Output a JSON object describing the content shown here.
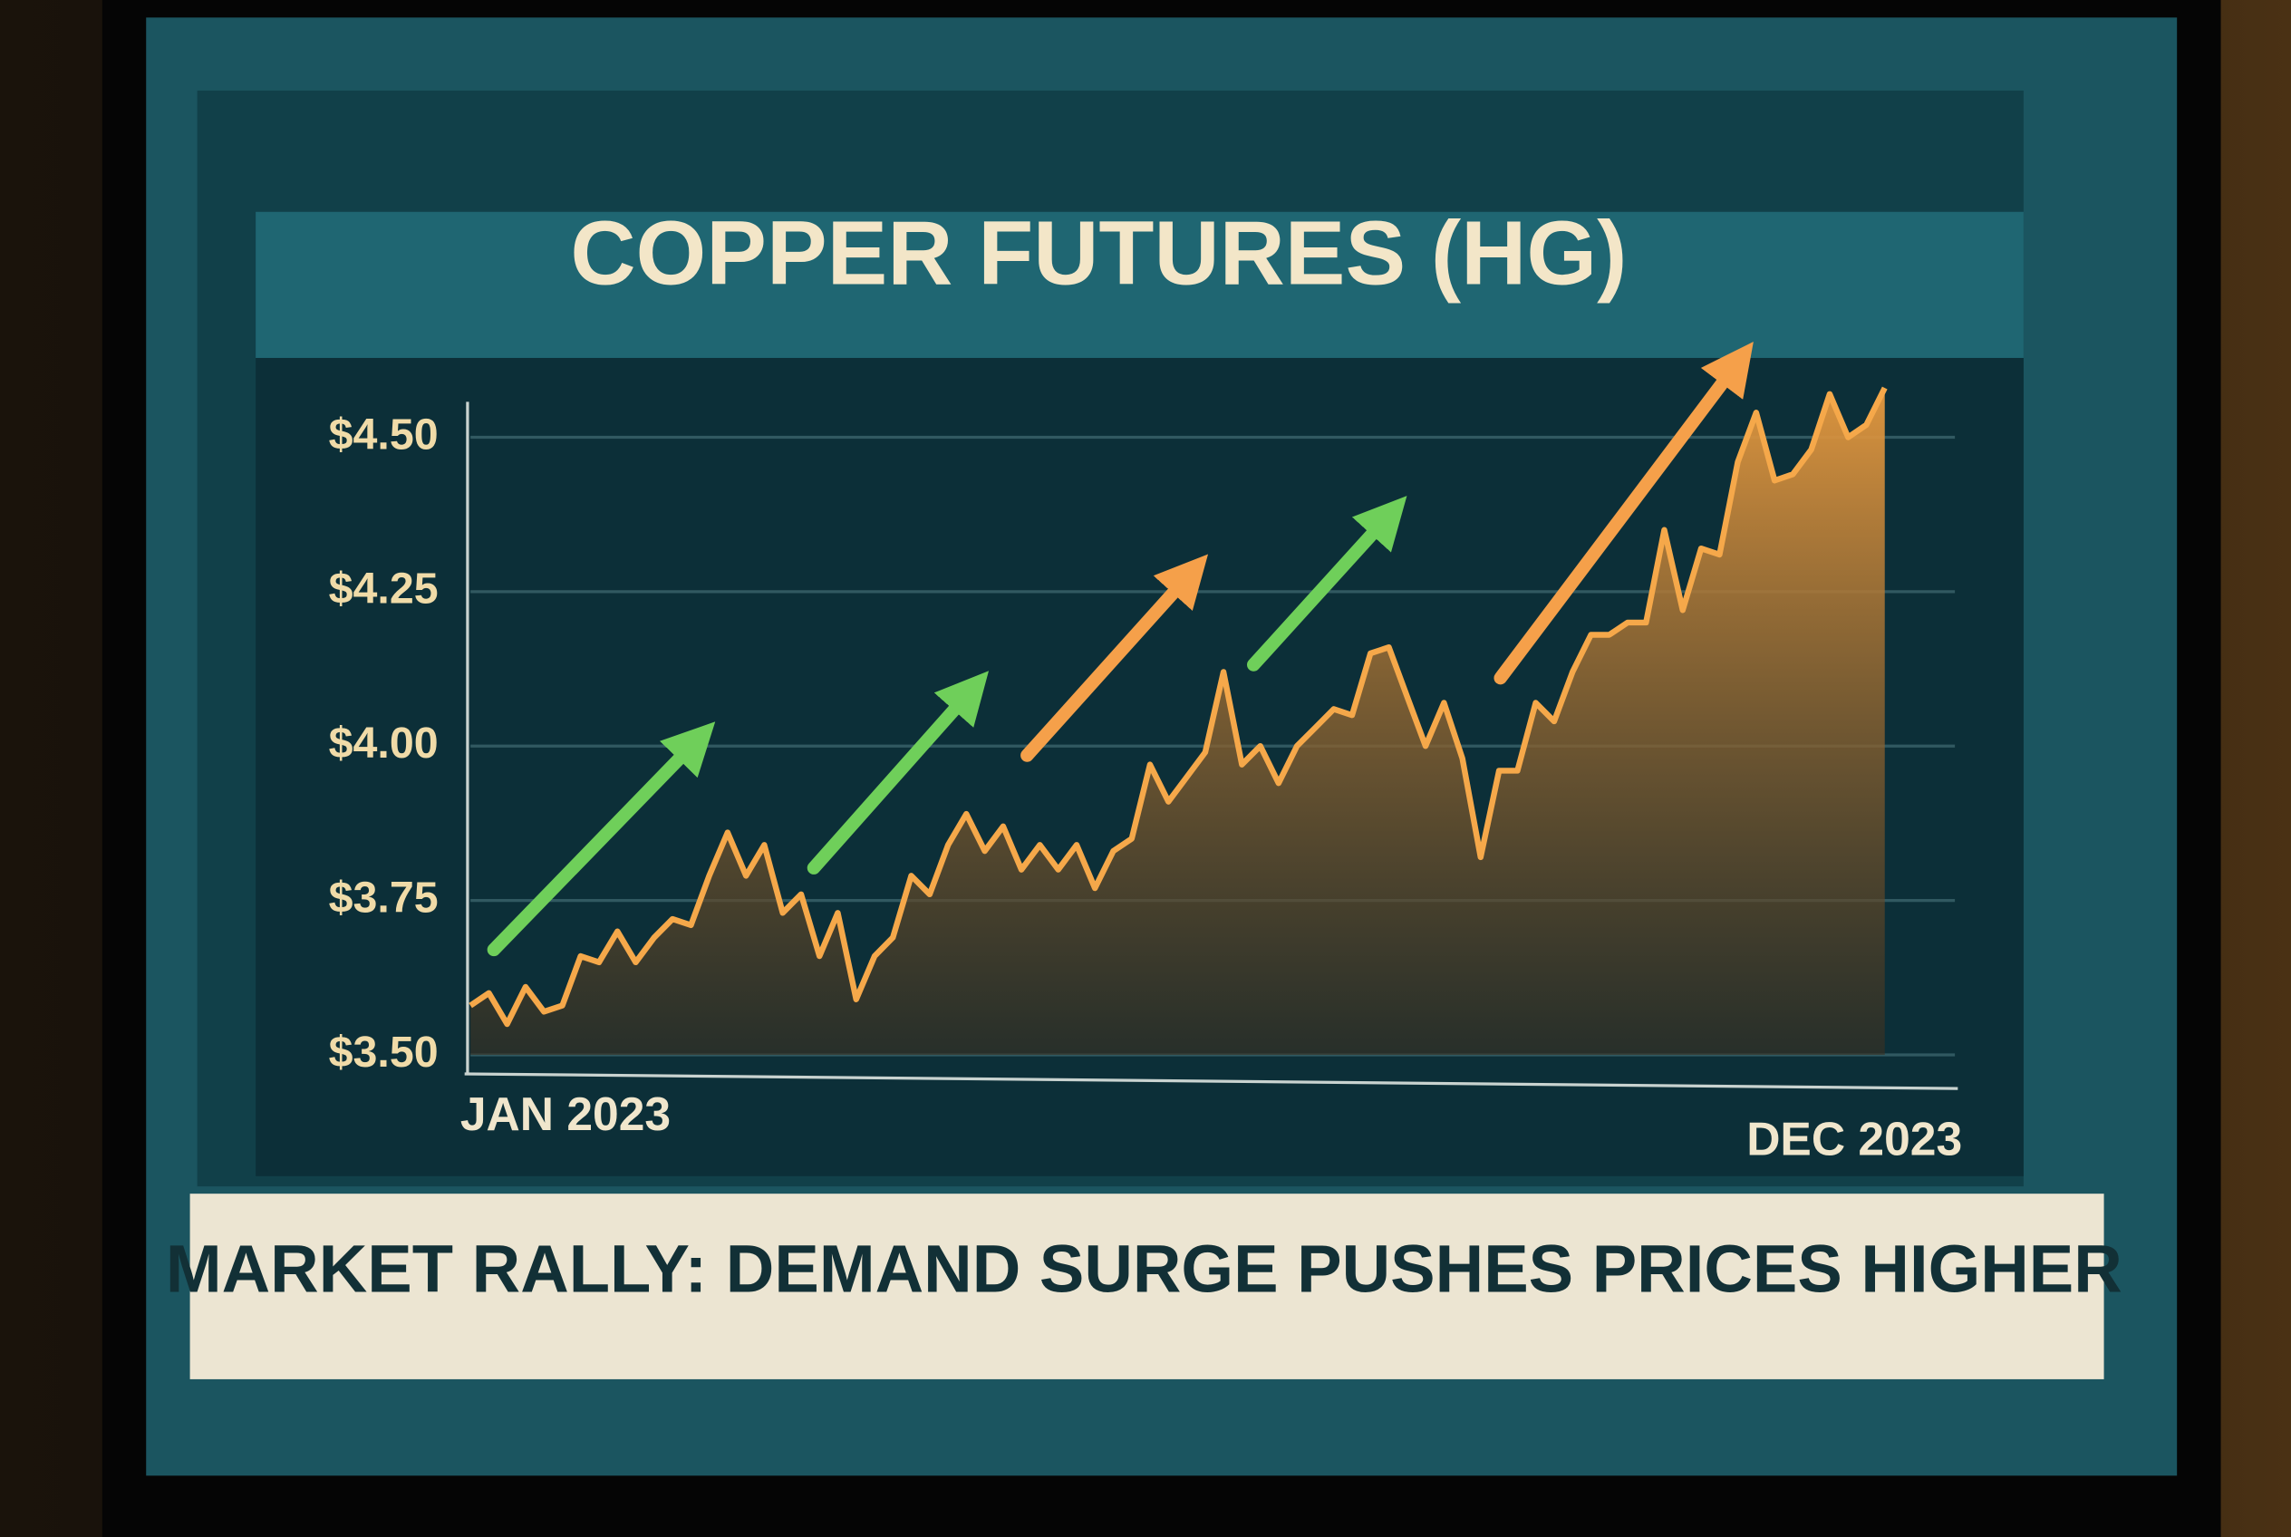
{
  "chart_data": {
    "type": "area",
    "title": "COPPER FUTURES (HG)",
    "subtitle": "MARKET RALLY: DEMAND SURGE PUSHES PRICES HIGHER",
    "categories": [
      "JAN 2023",
      null,
      null,
      null,
      null,
      null,
      null,
      null,
      null,
      null,
      null,
      null,
      null,
      null,
      null,
      null,
      null,
      null,
      null,
      null,
      null,
      null,
      null,
      null,
      null,
      null,
      null,
      null,
      null,
      null,
      null,
      null,
      null,
      null,
      null,
      null,
      null,
      null,
      null,
      null,
      null,
      null,
      null,
      null,
      null,
      null,
      null,
      null,
      null,
      null,
      null,
      null,
      null,
      null,
      null,
      null,
      null,
      null,
      null,
      null,
      null,
      null,
      null,
      null,
      null,
      null,
      null,
      null,
      null,
      null,
      null,
      null,
      null,
      null,
      null,
      null,
      null,
      "DEC 2023"
    ],
    "values": [
      3.58,
      3.6,
      3.55,
      3.61,
      3.57,
      3.58,
      3.66,
      3.65,
      3.7,
      3.65,
      3.69,
      3.72,
      3.71,
      3.79,
      3.86,
      3.79,
      3.84,
      3.73,
      3.76,
      3.66,
      3.73,
      3.59,
      3.66,
      3.69,
      3.79,
      3.76,
      3.84,
      3.89,
      3.83,
      3.87,
      3.8,
      3.84,
      3.8,
      3.84,
      3.77,
      3.83,
      3.85,
      3.97,
      3.91,
      3.95,
      3.99,
      4.12,
      3.97,
      4.0,
      3.94,
      4.0,
      4.03,
      4.06,
      4.05,
      4.15,
      4.16,
      4.08,
      4.0,
      4.07,
      3.98,
      3.82,
      3.96,
      3.96,
      4.07,
      4.04,
      4.12,
      4.18,
      4.18,
      4.2,
      4.2,
      4.35,
      4.22,
      4.32,
      4.31,
      4.46,
      4.54,
      4.43,
      4.44,
      4.48,
      4.57,
      4.5,
      4.52,
      4.58
    ],
    "color": "#f5a84a",
    "ylim": [
      3.5,
      4.6
    ],
    "yticks": [
      {
        "value": 3.5,
        "label": "$3.50"
      },
      {
        "value": 3.75,
        "label": "$3.75"
      },
      {
        "value": 4.0,
        "label": "$4.00"
      },
      {
        "value": 4.25,
        "label": "$4.25"
      },
      {
        "value": 4.5,
        "label": "$4.50"
      }
    ],
    "grid": true
  }
}
